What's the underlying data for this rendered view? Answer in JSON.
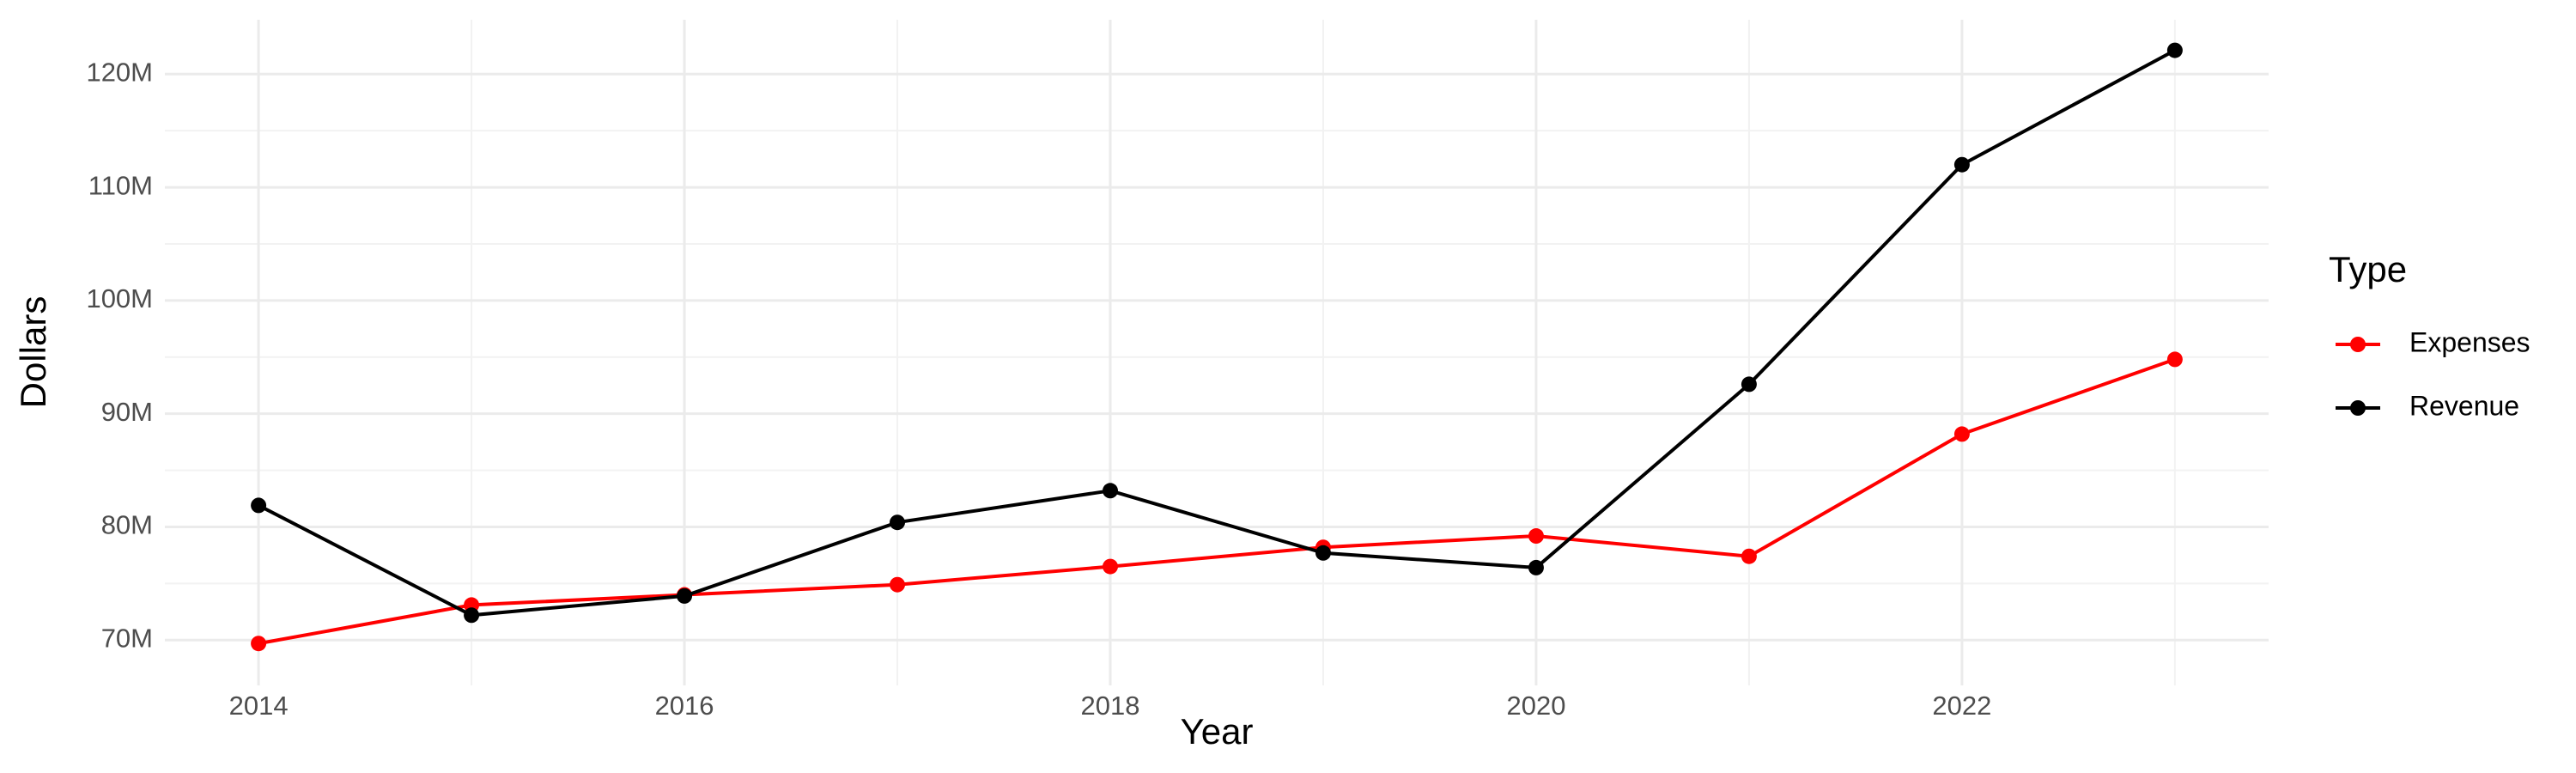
{
  "chart_data": {
    "type": "line",
    "x_label": "Year",
    "y_label": "Dollars",
    "legend_title": "Type",
    "x": [
      2014,
      2015,
      2016,
      2017,
      2018,
      2019,
      2020,
      2021,
      2022,
      2023
    ],
    "series": [
      {
        "name": "Expenses",
        "color": "#ff0000",
        "values": [
          69700000,
          73100000,
          74000000,
          74900000,
          76500000,
          78200000,
          79200000,
          77400000,
          88200000,
          94800000
        ]
      },
      {
        "name": "Revenue",
        "color": "#000000",
        "values": [
          81900000,
          72200000,
          73900000,
          80400000,
          83200000,
          77700000,
          76400000,
          92600000,
          112000000,
          122100000
        ]
      }
    ],
    "xlim": [
      2013.56,
      2023.44
    ],
    "xticks": [
      2014,
      2016,
      2018,
      2020,
      2022
    ],
    "ylim": [
      66000000,
      124800000
    ],
    "yticks": [
      {
        "value": 70000000,
        "label": "70M"
      },
      {
        "value": 80000000,
        "label": "80M"
      },
      {
        "value": 90000000,
        "label": "90M"
      },
      {
        "value": 100000000,
        "label": "100M"
      },
      {
        "value": 110000000,
        "label": "110M"
      },
      {
        "value": 120000000,
        "label": "120M"
      }
    ],
    "grid": true,
    "legend": "right"
  }
}
